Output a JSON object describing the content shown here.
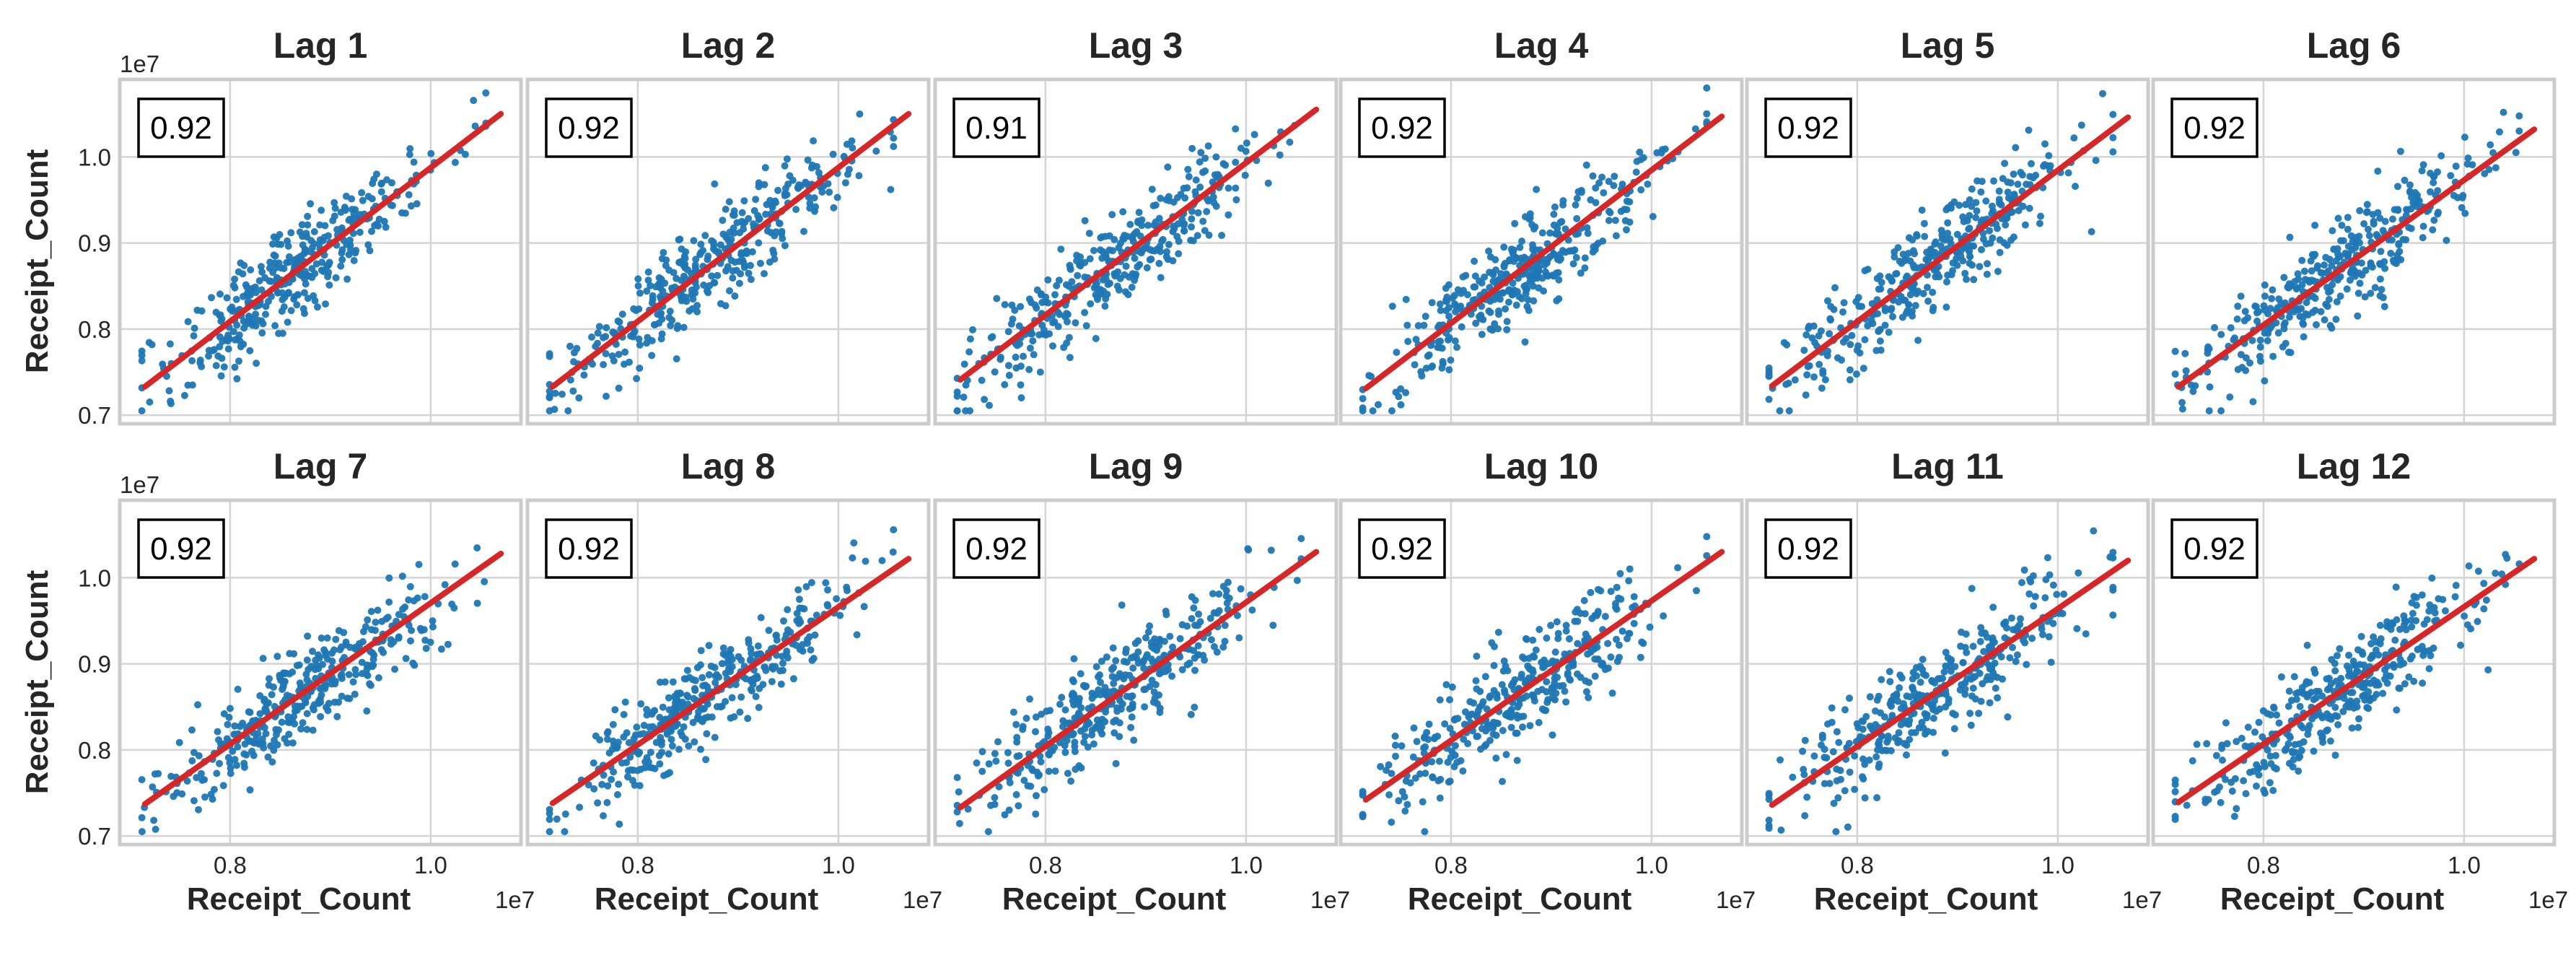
{
  "figure": {
    "panel_titles": [
      "Lag 1",
      "Lag 2",
      "Lag 3",
      "Lag 4",
      "Lag 5",
      "Lag 6",
      "Lag 7",
      "Lag 8",
      "Lag 9",
      "Lag 10",
      "Lag 11",
      "Lag 12"
    ],
    "correlations": [
      "0.92",
      "0.92",
      "0.91",
      "0.92",
      "0.92",
      "0.92",
      "0.92",
      "0.92",
      "0.92",
      "0.92",
      "0.92",
      "0.92"
    ],
    "xlabel": "Receipt_Count",
    "ylabel": "Receipt_Count",
    "x_offset_label": "1e7",
    "y_offset_label": "1e7"
  },
  "chart_data": {
    "type": "scatter",
    "layout": "2 rows x 6 columns of lag plots",
    "scale_factor": 10000000,
    "x_ticks": [
      0.8,
      1.0
    ],
    "x_tick_labels": [
      "0.8",
      "1.0"
    ],
    "y_ticks": [
      0.7,
      0.8,
      0.9,
      1.0
    ],
    "y_tick_labels": [
      "0.7",
      "0.8",
      "0.9",
      "1.0"
    ],
    "xlim": [
      0.69,
      1.09
    ],
    "ylim": [
      0.69,
      1.09
    ],
    "grid": true,
    "colors": {
      "points": "#1f77b4",
      "fit_line": "#d62728",
      "grid": "#d4d4d4",
      "frame": "#cccccc"
    },
    "point_count_per_panel_approx": 365,
    "panels": [
      {
        "lag": 1,
        "corr": 0.92,
        "fit": {
          "x0": 0.715,
          "y0": 0.733,
          "x1": 1.07,
          "y1": 1.05
        }
      },
      {
        "lag": 2,
        "corr": 0.92,
        "fit": {
          "x0": 0.715,
          "y0": 0.733,
          "x1": 1.07,
          "y1": 1.05
        }
      },
      {
        "lag": 3,
        "corr": 0.91,
        "fit": {
          "x0": 0.715,
          "y0": 0.741,
          "x1": 1.07,
          "y1": 1.055
        }
      },
      {
        "lag": 4,
        "corr": 0.92,
        "fit": {
          "x0": 0.715,
          "y0": 0.731,
          "x1": 1.07,
          "y1": 1.047
        }
      },
      {
        "lag": 5,
        "corr": 0.92,
        "fit": {
          "x0": 0.715,
          "y0": 0.734,
          "x1": 1.07,
          "y1": 1.046
        }
      },
      {
        "lag": 6,
        "corr": 0.92,
        "fit": {
          "x0": 0.715,
          "y0": 0.733,
          "x1": 1.07,
          "y1": 1.032
        }
      },
      {
        "lag": 7,
        "corr": 0.92,
        "fit": {
          "x0": 0.715,
          "y0": 0.737,
          "x1": 1.07,
          "y1": 1.028
        }
      },
      {
        "lag": 8,
        "corr": 0.92,
        "fit": {
          "x0": 0.715,
          "y0": 0.738,
          "x1": 1.07,
          "y1": 1.022
        }
      },
      {
        "lag": 9,
        "corr": 0.92,
        "fit": {
          "x0": 0.715,
          "y0": 0.733,
          "x1": 1.07,
          "y1": 1.03
        }
      },
      {
        "lag": 10,
        "corr": 0.92,
        "fit": {
          "x0": 0.715,
          "y0": 0.742,
          "x1": 1.07,
          "y1": 1.03
        }
      },
      {
        "lag": 11,
        "corr": 0.92,
        "fit": {
          "x0": 0.715,
          "y0": 0.736,
          "x1": 1.07,
          "y1": 1.02
        }
      },
      {
        "lag": 12,
        "corr": 0.92,
        "fit": {
          "x0": 0.715,
          "y0": 0.739,
          "x1": 1.07,
          "y1": 1.022
        }
      }
    ]
  }
}
